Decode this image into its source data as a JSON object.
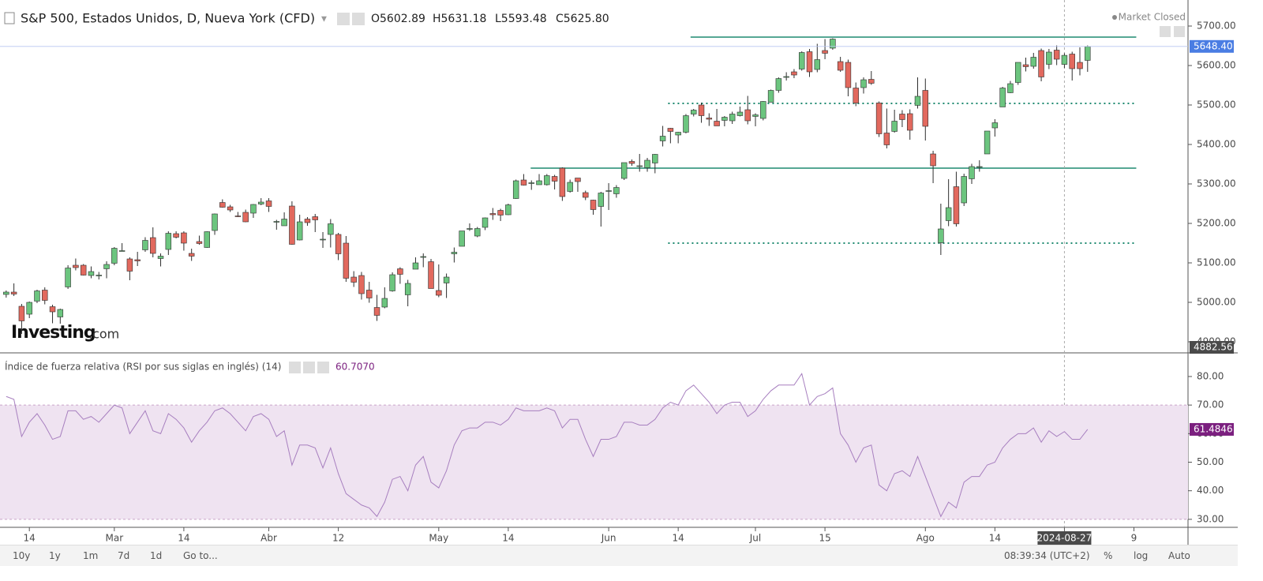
{
  "header": {
    "title": "S&P 500, Estados Unidos, D, Nueva York (CFD)",
    "ohlc": [
      "O5602.89",
      "H5631.18",
      "L5593.48",
      "C5625.80"
    ],
    "status": "Market Closed"
  },
  "logo": {
    "brand": "Investing",
    "suffix": ".com"
  },
  "toolbar": {
    "buttons": [
      "10y",
      "1y",
      "1m",
      "7d",
      "1d",
      "Go to..."
    ],
    "time": "08:39:34 (UTC+2)",
    "options": [
      "%",
      "log",
      "Auto"
    ]
  },
  "chart_data": [
    {
      "type": "candlestick",
      "up_color": "#6cc57f",
      "down_color": "#e2695e",
      "border_color": "#2e2e2e",
      "xlim": [
        -0.8,
        153
      ],
      "ylim": [
        4874,
        5766
      ],
      "crosshair": 137,
      "xticks": [
        {
          "value": 3,
          "label": "14"
        },
        {
          "value": 14,
          "label": "Mar"
        },
        {
          "value": 23,
          "label": "14"
        },
        {
          "value": 34,
          "label": "Abr"
        },
        {
          "value": 43,
          "label": "12"
        },
        {
          "value": 56,
          "label": "May"
        },
        {
          "value": 65,
          "label": "14"
        },
        {
          "value": 78,
          "label": "Jun"
        },
        {
          "value": 87,
          "label": "14"
        },
        {
          "value": 97,
          "label": "Jul"
        },
        {
          "value": 106,
          "label": "15"
        },
        {
          "value": 119,
          "label": "Ago"
        },
        {
          "value": 128,
          "label": "14"
        },
        {
          "value": 137,
          "label": "2024-08-27"
        },
        {
          "value": 146,
          "label": "9"
        }
      ],
      "yticks": [
        {
          "value": 4900,
          "label": "4900.00"
        },
        {
          "value": 5000,
          "label": "5000.00"
        },
        {
          "value": 5100,
          "label": "5100.00"
        },
        {
          "value": 5200,
          "label": "5200.00"
        },
        {
          "value": 5300,
          "label": "5300.00"
        },
        {
          "value": 5400,
          "label": "5400.00"
        },
        {
          "value": 5500,
          "label": "5500.00"
        },
        {
          "value": 5600,
          "label": "5600.00"
        },
        {
          "value": 5700,
          "label": "5700.00"
        }
      ],
      "price_labels": [
        {
          "value": 5648.4,
          "label": "5648.40",
          "color": "#4a7de3"
        },
        {
          "value": 4882.56,
          "label": "4882.56",
          "color": "#4a4a4a"
        }
      ],
      "hlines": [
        {
          "value": 5672,
          "style": "solid",
          "from": 88.6,
          "to": 146.3,
          "color": "#1f8a70"
        },
        {
          "value": 5340,
          "style": "solid",
          "from": 67.9,
          "to": 146.3,
          "color": "#1f8a70"
        },
        {
          "value": 5504,
          "style": "dotted",
          "from": 85.7,
          "to": 146.3,
          "color": "#1f8a70"
        },
        {
          "value": 5150,
          "style": "dotted",
          "from": 85.7,
          "to": 146.3,
          "color": "#1f8a70"
        }
      ],
      "candles": [
        [
          5020,
          5030,
          5012,
          5026
        ],
        [
          5026,
          5048,
          5016,
          5021
        ],
        [
          4990,
          4996,
          4920,
          4953
        ],
        [
          4970,
          5002,
          4960,
          5000
        ],
        [
          5003,
          5032,
          4998,
          5029
        ],
        [
          5031,
          5038,
          4995,
          5005
        ],
        [
          4989,
          4994,
          4947,
          4976
        ],
        [
          4963,
          4984,
          4946,
          4982
        ],
        [
          5039,
          5094,
          5034,
          5087
        ],
        [
          5094,
          5111,
          5081,
          5088
        ],
        [
          5094,
          5097,
          5068,
          5069
        ],
        [
          5068,
          5091,
          5061,
          5078
        ],
        [
          5068,
          5077,
          5058,
          5069
        ],
        [
          5085,
          5104,
          5061,
          5096
        ],
        [
          5099,
          5140,
          5094,
          5137
        ],
        [
          5130,
          5150,
          5129,
          5131
        ],
        [
          5110,
          5114,
          5056,
          5079
        ],
        [
          5108,
          5128,
          5092,
          5105
        ],
        [
          5133,
          5165,
          5128,
          5157
        ],
        [
          5164,
          5190,
          5114,
          5124
        ],
        [
          5111,
          5124,
          5091,
          5117
        ],
        [
          5134,
          5180,
          5120,
          5175
        ],
        [
          5174,
          5180,
          5162,
          5165
        ],
        [
          5176,
          5180,
          5131,
          5150
        ],
        [
          5124,
          5136,
          5105,
          5117
        ],
        [
          5154,
          5169,
          5146,
          5149
        ],
        [
          5139,
          5180,
          5138,
          5179
        ],
        [
          5182,
          5225,
          5171,
          5224
        ],
        [
          5253,
          5261,
          5240,
          5241
        ],
        [
          5242,
          5247,
          5229,
          5234
        ],
        [
          5219,
          5229,
          5216,
          5218
        ],
        [
          5228,
          5235,
          5203,
          5204
        ],
        [
          5226,
          5249,
          5214,
          5248
        ],
        [
          5249,
          5264,
          5246,
          5254
        ],
        [
          5257,
          5264,
          5229,
          5243
        ],
        [
          5204,
          5209,
          5184,
          5205
        ],
        [
          5194,
          5228,
          5194,
          5211
        ],
        [
          5244,
          5256,
          5146,
          5147
        ],
        [
          5158,
          5222,
          5157,
          5204
        ],
        [
          5211,
          5216,
          5194,
          5202
        ],
        [
          5217,
          5224,
          5178,
          5209
        ],
        [
          5160,
          5178,
          5138,
          5160
        ],
        [
          5172,
          5211,
          5139,
          5199
        ],
        [
          5172,
          5176,
          5107,
          5123
        ],
        [
          5150,
          5168,
          5052,
          5061
        ],
        [
          5064,
          5079,
          5039,
          5051
        ],
        [
          5068,
          5077,
          5007,
          5022
        ],
        [
          5031,
          5052,
          4999,
          5011
        ],
        [
          4987,
          5019,
          4953,
          4967
        ],
        [
          4988,
          5038,
          4985,
          5010
        ],
        [
          5029,
          5076,
          5027,
          5070
        ],
        [
          5085,
          5089,
          5047,
          5071
        ],
        [
          5019,
          5057,
          4990,
          5048
        ],
        [
          5084,
          5114,
          5084,
          5100
        ],
        [
          5114,
          5124,
          5089,
          5116
        ],
        [
          5103,
          5110,
          5035,
          5035
        ],
        [
          5030,
          5096,
          5013,
          5018
        ],
        [
          5049,
          5073,
          5011,
          5064
        ],
        [
          5123,
          5139,
          5101,
          5127
        ],
        [
          5142,
          5181,
          5142,
          5181
        ],
        [
          5187,
          5200,
          5181,
          5187
        ],
        [
          5168,
          5191,
          5165,
          5187
        ],
        [
          5190,
          5215,
          5183,
          5214
        ],
        [
          5225,
          5239,
          5209,
          5222
        ],
        [
          5233,
          5237,
          5206,
          5221
        ],
        [
          5222,
          5250,
          5221,
          5247
        ],
        [
          5263,
          5311,
          5262,
          5308
        ],
        [
          5310,
          5325,
          5296,
          5297
        ],
        [
          5303,
          5309,
          5285,
          5303
        ],
        [
          5298,
          5325,
          5298,
          5308
        ],
        [
          5298,
          5325,
          5296,
          5321
        ],
        [
          5319,
          5323,
          5286,
          5307
        ],
        [
          5340,
          5342,
          5257,
          5268
        ],
        [
          5281,
          5311,
          5278,
          5304
        ],
        [
          5315,
          5315,
          5280,
          5306
        ],
        [
          5278,
          5283,
          5259,
          5266
        ],
        [
          5259,
          5260,
          5222,
          5235
        ],
        [
          5243,
          5280,
          5192,
          5277
        ],
        [
          5283,
          5302,
          5234,
          5283
        ],
        [
          5275,
          5297,
          5265,
          5291
        ],
        [
          5314,
          5354,
          5310,
          5354
        ],
        [
          5357,
          5362,
          5346,
          5352
        ],
        [
          5344,
          5376,
          5331,
          5346
        ],
        [
          5341,
          5366,
          5331,
          5360
        ],
        [
          5353,
          5376,
          5327,
          5375
        ],
        [
          5409,
          5447,
          5395,
          5421
        ],
        [
          5441,
          5442,
          5403,
          5433
        ],
        [
          5424,
          5432,
          5403,
          5431
        ],
        [
          5431,
          5477,
          5428,
          5473
        ],
        [
          5477,
          5490,
          5471,
          5487
        ],
        [
          5500,
          5506,
          5455,
          5473
        ],
        [
          5467,
          5479,
          5447,
          5464
        ],
        [
          5459,
          5490,
          5447,
          5447
        ],
        [
          5461,
          5472,
          5446,
          5469
        ],
        [
          5460,
          5483,
          5452,
          5477
        ],
        [
          5473,
          5496,
          5471,
          5482
        ],
        [
          5488,
          5523,
          5451,
          5460
        ],
        [
          5471,
          5479,
          5446,
          5475
        ],
        [
          5466,
          5510,
          5461,
          5509
        ],
        [
          5507,
          5539,
          5507,
          5537
        ],
        [
          5537,
          5570,
          5531,
          5567
        ],
        [
          5572,
          5583,
          5562,
          5572
        ],
        [
          5584,
          5591,
          5568,
          5576
        ],
        [
          5591,
          5636,
          5587,
          5633
        ],
        [
          5635,
          5642,
          5571,
          5584
        ],
        [
          5590,
          5655,
          5583,
          5615
        ],
        [
          5638,
          5667,
          5616,
          5631
        ],
        [
          5644,
          5669,
          5640,
          5667
        ],
        [
          5610,
          5622,
          5584,
          5588
        ],
        [
          5608,
          5615,
          5522,
          5544
        ],
        [
          5543,
          5557,
          5497,
          5505
        ],
        [
          5544,
          5570,
          5529,
          5564
        ],
        [
          5565,
          5586,
          5551,
          5555
        ],
        [
          5505,
          5509,
          5419,
          5427
        ],
        [
          5429,
          5491,
          5390,
          5399
        ],
        [
          5433,
          5488,
          5430,
          5459
        ],
        [
          5477,
          5487,
          5444,
          5463
        ],
        [
          5478,
          5489,
          5412,
          5436
        ],
        [
          5499,
          5570,
          5491,
          5522
        ],
        [
          5537,
          5567,
          5410,
          5446
        ],
        [
          5376,
          5384,
          5302,
          5346
        ],
        [
          5151,
          5250,
          5120,
          5186
        ],
        [
          5207,
          5312,
          5193,
          5240
        ],
        [
          5293,
          5331,
          5192,
          5199
        ],
        [
          5252,
          5326,
          5244,
          5319
        ],
        [
          5313,
          5351,
          5300,
          5344
        ],
        [
          5344,
          5360,
          5331,
          5344
        ],
        [
          5376,
          5434,
          5376,
          5434
        ],
        [
          5442,
          5464,
          5420,
          5455
        ],
        [
          5495,
          5546,
          5495,
          5543
        ],
        [
          5531,
          5561,
          5530,
          5554
        ],
        [
          5557,
          5608,
          5551,
          5608
        ],
        [
          5602,
          5620,
          5585,
          5597
        ],
        [
          5598,
          5632,
          5592,
          5621
        ],
        [
          5638,
          5643,
          5560,
          5571
        ],
        [
          5603,
          5642,
          5591,
          5634
        ],
        [
          5639,
          5651,
          5601,
          5616
        ],
        [
          5602.89,
          5631.18,
          5593.48,
          5625.8
        ],
        [
          5629,
          5635,
          5562,
          5592
        ],
        [
          5608,
          5646,
          5575,
          5592
        ],
        [
          5613,
          5651,
          5584,
          5648
        ]
      ]
    },
    {
      "type": "line",
      "title": "Índice de fuerza relativa (RSI por sus siglas en inglés) (14)",
      "header_value": "60.7070",
      "color": "#a77fbf",
      "band": [
        30,
        70
      ],
      "band_color": "#efe3f1",
      "ylim": [
        27.2,
        88
      ],
      "yticks": [
        {
          "value": 30,
          "label": "30.00"
        },
        {
          "value": 40,
          "label": "40.00"
        },
        {
          "value": 50,
          "label": "50.00"
        },
        {
          "value": 60,
          "label": "60.00"
        },
        {
          "value": 70,
          "label": "70.00"
        },
        {
          "value": 80,
          "label": "80.00"
        }
      ],
      "last_label": {
        "value": 61.4846,
        "label": "61.4846",
        "color": "#7b1f7f"
      },
      "values": [
        73,
        72,
        59,
        64,
        67,
        63,
        58,
        59,
        68,
        68,
        65,
        66,
        64,
        67,
        70,
        69,
        60,
        64,
        68,
        61,
        60,
        67,
        65,
        62,
        57,
        61,
        64,
        68,
        69,
        67,
        64,
        61,
        66,
        67,
        65,
        59,
        61,
        49,
        56,
        56,
        55,
        48,
        55,
        46,
        39,
        37,
        35,
        34,
        31,
        36,
        44,
        45,
        40,
        49,
        52,
        43,
        41,
        47,
        56,
        61,
        62,
        62,
        64,
        64,
        63,
        65,
        69,
        68,
        68,
        68,
        69,
        68,
        62,
        65,
        65,
        58,
        52,
        58,
        58,
        59,
        64,
        64,
        63,
        63,
        65,
        69,
        71,
        70,
        75,
        77,
        74,
        71,
        67,
        70,
        71,
        71,
        66,
        68,
        72,
        75,
        77,
        77,
        77,
        81,
        70,
        73,
        74,
        76,
        60,
        56,
        50,
        55,
        56,
        42,
        40,
        46,
        47,
        45,
        52,
        45,
        38,
        31,
        36,
        34,
        43,
        45,
        45,
        49,
        50,
        55,
        58,
        60,
        60,
        62,
        57,
        61,
        59,
        60.707,
        58,
        58,
        61.4846
      ]
    }
  ]
}
